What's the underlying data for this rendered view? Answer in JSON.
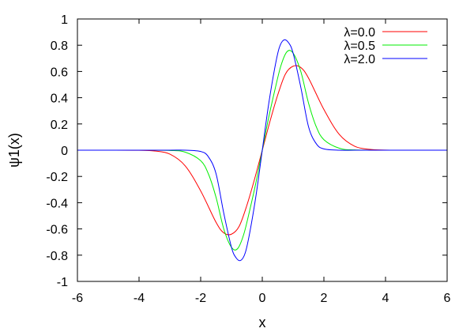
{
  "chart_data": {
    "type": "line",
    "title": "",
    "xlabel": "x",
    "ylabel": "ψ1(x)",
    "xlim": [
      -6,
      6
    ],
    "ylim": [
      -1,
      1
    ],
    "grid": false,
    "legend_position": "top-right",
    "x_ticks": [
      "-6",
      "-4",
      "-2",
      "0",
      "2",
      "4",
      "6"
    ],
    "y_ticks": [
      "-1",
      "-0.8",
      "-0.6",
      "-0.4",
      "-0.2",
      "0",
      "0.2",
      "0.4",
      "0.6",
      "0.8",
      "1"
    ],
    "series": [
      {
        "name": "λ=0.0",
        "color": "#ff0000",
        "x": [
          -6,
          -5,
          -4,
          -3.5,
          -3,
          -2.5,
          -2,
          -1.5,
          -1.25,
          -1,
          -0.75,
          -0.5,
          -0.25,
          0,
          0.25,
          0.5,
          0.75,
          1,
          1.25,
          1.5,
          2,
          2.5,
          3,
          3.5,
          4,
          5,
          6
        ],
        "y": [
          0,
          0,
          -0.001,
          -0.006,
          -0.03,
          -0.12,
          -0.31,
          -0.55,
          -0.63,
          -0.64,
          -0.58,
          -0.42,
          -0.22,
          0,
          0.22,
          0.42,
          0.58,
          0.64,
          0.63,
          0.55,
          0.31,
          0.12,
          0.03,
          0.006,
          0.001,
          0,
          0
        ]
      },
      {
        "name": "λ=0.5",
        "color": "#00ee00",
        "x": [
          -6,
          -5,
          -4,
          -3,
          -2.5,
          -2,
          -1.75,
          -1.5,
          -1.25,
          -1,
          -0.8,
          -0.6,
          -0.4,
          -0.2,
          0,
          0.2,
          0.4,
          0.6,
          0.8,
          1,
          1.25,
          1.5,
          1.75,
          2,
          2.5,
          3,
          4,
          5,
          6
        ],
        "y": [
          0,
          0,
          0,
          -0.002,
          -0.015,
          -0.08,
          -0.18,
          -0.36,
          -0.6,
          -0.74,
          -0.75,
          -0.64,
          -0.45,
          -0.24,
          0,
          0.24,
          0.45,
          0.64,
          0.75,
          0.74,
          0.6,
          0.36,
          0.18,
          0.08,
          0.015,
          0.002,
          0,
          0,
          0
        ]
      },
      {
        "name": "λ=2.0",
        "color": "#0000ff",
        "x": [
          -6,
          -4,
          -3,
          -2.5,
          -2,
          -1.75,
          -1.5,
          -1.25,
          -1,
          -0.85,
          -0.7,
          -0.55,
          -0.4,
          -0.2,
          0,
          0.2,
          0.4,
          0.55,
          0.7,
          0.85,
          1,
          1.25,
          1.5,
          1.75,
          2,
          2.5,
          3,
          4,
          6
        ],
        "y": [
          0,
          0,
          0,
          0,
          -0.01,
          -0.05,
          -0.18,
          -0.48,
          -0.74,
          -0.82,
          -0.84,
          -0.78,
          -0.62,
          -0.34,
          0,
          0.34,
          0.62,
          0.78,
          0.84,
          0.82,
          0.74,
          0.48,
          0.18,
          0.05,
          0.01,
          0,
          0,
          0,
          0
        ]
      }
    ]
  }
}
